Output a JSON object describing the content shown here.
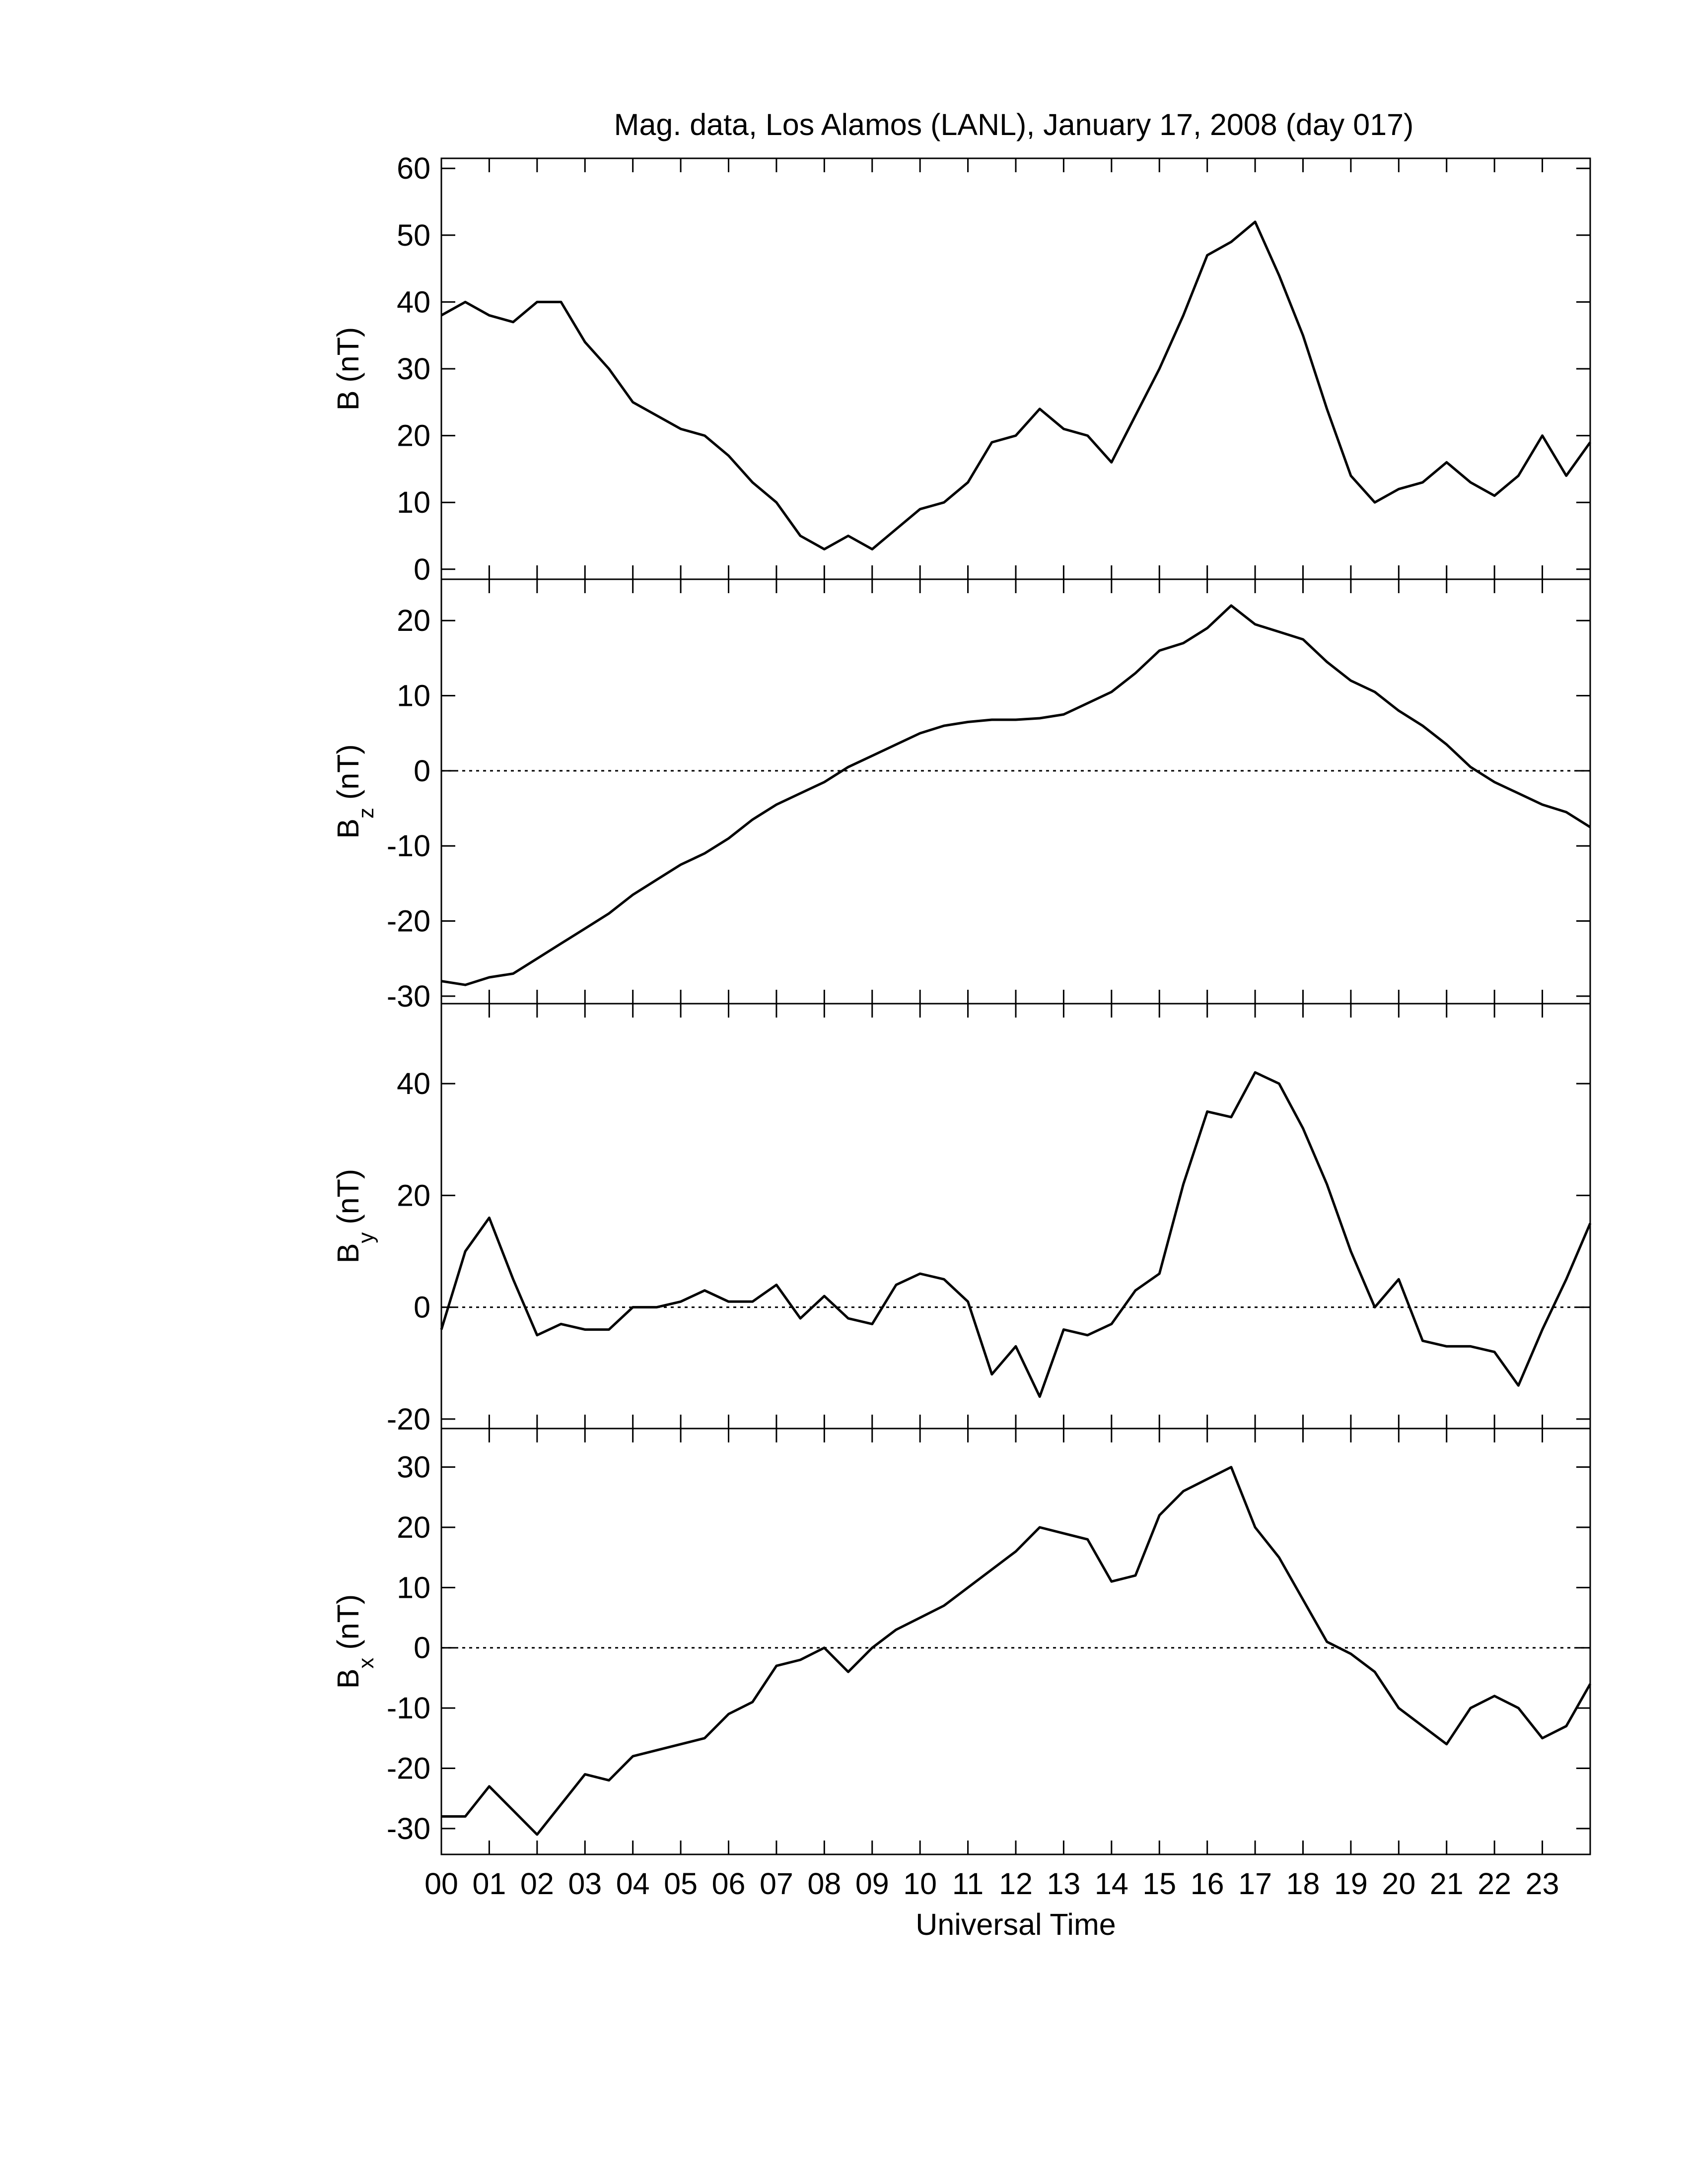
{
  "x_axis": {
    "label": "Universal Time",
    "xlim": [
      0,
      24
    ],
    "xticks": [
      {
        "value": 0,
        "label": "00"
      },
      {
        "value": 1,
        "label": "01"
      },
      {
        "value": 2,
        "label": "02"
      },
      {
        "value": 3,
        "label": "03"
      },
      {
        "value": 4,
        "label": "04"
      },
      {
        "value": 5,
        "label": "05"
      },
      {
        "value": 6,
        "label": "06"
      },
      {
        "value": 7,
        "label": "07"
      },
      {
        "value": 8,
        "label": "08"
      },
      {
        "value": 9,
        "label": "09"
      },
      {
        "value": 10,
        "label": "10"
      },
      {
        "value": 11,
        "label": "11"
      },
      {
        "value": 12,
        "label": "12"
      },
      {
        "value": 13,
        "label": "13"
      },
      {
        "value": 14,
        "label": "14"
      },
      {
        "value": 15,
        "label": "15"
      },
      {
        "value": 16,
        "label": "16"
      },
      {
        "value": 17,
        "label": "17"
      },
      {
        "value": 18,
        "label": "18"
      },
      {
        "value": 19,
        "label": "19"
      },
      {
        "value": 20,
        "label": "20"
      },
      {
        "value": 21,
        "label": "21"
      },
      {
        "value": 22,
        "label": "22"
      },
      {
        "value": 23,
        "label": "23"
      }
    ]
  },
  "x": [
    0,
    0.5,
    1,
    1.5,
    2,
    2.5,
    3,
    3.5,
    4,
    4.5,
    5,
    5.5,
    6,
    6.5,
    7,
    7.5,
    8,
    8.5,
    9,
    9.5,
    10,
    10.5,
    11,
    11.5,
    12,
    12.5,
    13,
    13.5,
    14,
    14.5,
    15,
    15.5,
    16,
    16.5,
    17,
    17.5,
    18,
    18.5,
    19,
    19.5,
    20,
    20.5,
    21,
    21.5,
    22,
    22.5,
    23,
    23.5,
    24
  ],
  "chart_data": [
    {
      "type": "line",
      "title": "Mag. data, Los Alamos (LANL), January 17, 2008 (day 017)",
      "ylabel": "B",
      "ylabel_unit": "(nT)",
      "color": "#000000",
      "zero_line": false,
      "ylim": [
        -1.5,
        61.5
      ],
      "yticks": [
        0,
        10,
        20,
        30,
        40,
        50,
        60
      ],
      "values": [
        38,
        40,
        38,
        37,
        40,
        40,
        34,
        30,
        25,
        23,
        21,
        20,
        17,
        13,
        10,
        5,
        3,
        5,
        3,
        6,
        9,
        10,
        13,
        19,
        20,
        24,
        21,
        20,
        16,
        23,
        30,
        38,
        47,
        49,
        52,
        44,
        35,
        24,
        14,
        10,
        12,
        13,
        16,
        13,
        11,
        14,
        20,
        14,
        19
      ]
    },
    {
      "type": "line",
      "ylabel": "B",
      "ylabel_sub": "z",
      "ylabel_unit": "(nT)",
      "color": "#000000",
      "zero_line": true,
      "ylim": [
        -31,
        25.5
      ],
      "yticks": [
        -30,
        -20,
        -10,
        0,
        10,
        20
      ],
      "values": [
        -28,
        -28.5,
        -27.5,
        -27,
        -25,
        -23,
        -21,
        -19,
        -16.5,
        -14.5,
        -12.5,
        -11,
        -9,
        -6.5,
        -4.5,
        -3,
        -1.5,
        0.5,
        2,
        3.5,
        5,
        6,
        6.5,
        6.8,
        6.8,
        7,
        7.5,
        9,
        10.5,
        13,
        16,
        17,
        19,
        22,
        19.5,
        18.5,
        17.5,
        14.5,
        12,
        10.5,
        8,
        6,
        3.5,
        0.5,
        -1.5,
        -3,
        -4.5,
        -5.5,
        -7.5
      ]
    },
    {
      "type": "line",
      "ylabel": "B",
      "ylabel_sub": "y",
      "ylabel_unit": "(nT)",
      "color": "#000000",
      "zero_line": true,
      "ylim": [
        -21.7,
        54.3
      ],
      "yticks": [
        -20,
        0,
        20,
        40
      ],
      "values": [
        -4,
        10,
        16,
        5,
        -5,
        -3,
        -4,
        -4,
        0,
        0,
        1,
        3,
        1,
        1,
        4,
        -2,
        2,
        -2,
        -3,
        4,
        6,
        5,
        1,
        -12,
        -7,
        -16,
        -4,
        -5,
        -3,
        3,
        6,
        22,
        35,
        34,
        42,
        40,
        32,
        22,
        10,
        0,
        5,
        -6,
        -7,
        -7,
        -8,
        -14,
        -4,
        5,
        15
      ]
    },
    {
      "type": "line",
      "ylabel": "B",
      "ylabel_sub": "x",
      "ylabel_unit": "(nT)",
      "color": "#000000",
      "zero_line": true,
      "ylim": [
        -34.3,
        36.4
      ],
      "yticks": [
        -30,
        -20,
        -10,
        0,
        10,
        20,
        30
      ],
      "values": [
        -28,
        -28,
        -23,
        -27,
        -31,
        -26,
        -21,
        -22,
        -18,
        -17,
        -16,
        -15,
        -11,
        -9,
        -3,
        -2,
        0,
        -4,
        0,
        3,
        5,
        7,
        10,
        13,
        16,
        20,
        19,
        18,
        11,
        12,
        22,
        26,
        28,
        30,
        20,
        15,
        8,
        1,
        -1,
        -4,
        -10,
        -13,
        -16,
        -10,
        -8,
        -10,
        -15,
        -13,
        -6
      ]
    }
  ]
}
